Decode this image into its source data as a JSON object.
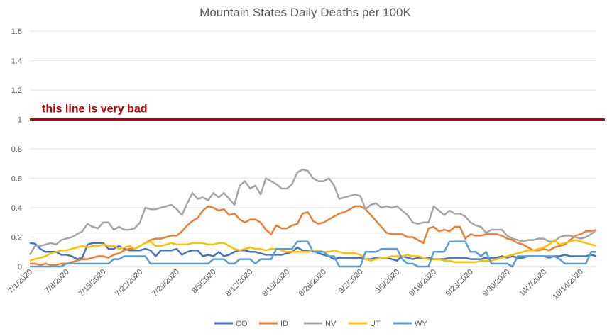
{
  "chart_data": {
    "type": "line",
    "title": "Mountain States Daily Deaths per 100K",
    "xlabel": "",
    "ylabel": "",
    "ylim": [
      0,
      1.6
    ],
    "yticks": [
      "0",
      "0.2",
      "0.4",
      "0.6",
      "0.8",
      "1",
      "1.2",
      "1.4",
      "1.6"
    ],
    "y_tick_values": [
      0,
      0.2,
      0.4,
      0.6,
      0.8,
      1,
      1.2,
      1.4,
      1.6
    ],
    "x_tick_labels": [
      "7/1/2020",
      "7/8/2020",
      "7/15/2020",
      "7/22/2020",
      "7/29/2020",
      "8/5/2020",
      "8/12/2020",
      "8/19/2020",
      "8/26/2020",
      "9/2/2020",
      "9/9/2020",
      "9/16/2020",
      "9/23/2020",
      "9/30/2020",
      "10/7/2020",
      "10/14/2020"
    ],
    "gridlines": true,
    "legend_position": "bottom",
    "reference_line": {
      "value": 1,
      "label": "this line is very bad",
      "color": "#c00000"
    },
    "x": [
      "7/1/2020",
      "7/2/2020",
      "7/3/2020",
      "7/4/2020",
      "7/5/2020",
      "7/6/2020",
      "7/7/2020",
      "7/8/2020",
      "7/9/2020",
      "7/10/2020",
      "7/11/2020",
      "7/12/2020",
      "7/13/2020",
      "7/14/2020",
      "7/15/2020",
      "7/16/2020",
      "7/17/2020",
      "7/18/2020",
      "7/19/2020",
      "7/20/2020",
      "7/21/2020",
      "7/22/2020",
      "7/23/2020",
      "7/24/2020",
      "7/25/2020",
      "7/26/2020",
      "7/27/2020",
      "7/28/2020",
      "7/29/2020",
      "7/30/2020",
      "7/31/2020",
      "8/1/2020",
      "8/2/2020",
      "8/3/2020",
      "8/4/2020",
      "8/5/2020",
      "8/6/2020",
      "8/7/2020",
      "8/8/2020",
      "8/9/2020",
      "8/10/2020",
      "8/11/2020",
      "8/12/2020",
      "8/13/2020",
      "8/14/2020",
      "8/15/2020",
      "8/16/2020",
      "8/17/2020",
      "8/18/2020",
      "8/19/2020",
      "8/20/2020",
      "8/21/2020",
      "8/22/2020",
      "8/23/2020",
      "8/24/2020",
      "8/25/2020",
      "8/26/2020",
      "8/27/2020",
      "8/28/2020",
      "8/29/2020",
      "8/30/2020",
      "8/31/2020",
      "9/1/2020",
      "9/2/2020",
      "9/3/2020",
      "9/4/2020",
      "9/5/2020",
      "9/6/2020",
      "9/7/2020",
      "9/8/2020",
      "9/9/2020",
      "9/10/2020",
      "9/11/2020",
      "9/12/2020",
      "9/13/2020",
      "9/14/2020",
      "9/15/2020",
      "9/16/2020",
      "9/17/2020",
      "9/18/2020",
      "9/19/2020",
      "9/20/2020",
      "9/21/2020",
      "9/22/2020",
      "9/23/2020",
      "9/24/2020",
      "9/25/2020",
      "9/26/2020",
      "9/27/2020",
      "9/28/2020",
      "9/29/2020",
      "9/30/2020",
      "10/1/2020",
      "10/2/2020",
      "10/3/2020",
      "10/4/2020",
      "10/5/2020",
      "10/6/2020",
      "10/7/2020",
      "10/8/2020",
      "10/9/2020",
      "10/10/2020",
      "10/11/2020",
      "10/12/2020",
      "10/13/2020",
      "10/14/2020",
      "10/15/2020",
      "10/16/2020",
      "10/17/2020"
    ],
    "series": [
      {
        "name": "CO",
        "color": "#4472c4",
        "values": [
          0.16,
          0.155,
          0.12,
          0.1,
          0.1,
          0.1,
          0.08,
          0.08,
          0.07,
          0.05,
          0.06,
          0.15,
          0.16,
          0.16,
          0.16,
          0.12,
          0.12,
          0.14,
          0.12,
          0.11,
          0.11,
          0.11,
          0.12,
          0.11,
          0.07,
          0.11,
          0.11,
          0.11,
          0.12,
          0.08,
          0.1,
          0.11,
          0.11,
          0.07,
          0.08,
          0.07,
          0.1,
          0.07,
          0.08,
          0.1,
          0.11,
          0.11,
          0.1,
          0.1,
          0.09,
          0.08,
          0.08,
          0.08,
          0.08,
          0.09,
          0.1,
          0.13,
          0.11,
          0.11,
          0.11,
          0.09,
          0.08,
          0.07,
          0.05,
          0.06,
          0.06,
          0.06,
          0.06,
          0.06,
          0.05,
          0.05,
          0.06,
          0.06,
          0.06,
          0.05,
          0.04,
          0.07,
          0.06,
          0.05,
          0.06,
          0.06,
          0.06,
          0.05,
          0.05,
          0.05,
          0.06,
          0.06,
          0.06,
          0.06,
          0.05,
          0.05,
          0.05,
          0.06,
          0.06,
          0.06,
          0.07,
          0.06,
          0.07,
          0.06,
          0.06,
          0.07,
          0.07,
          0.07,
          0.07,
          0.06,
          0.07,
          0.07,
          0.08,
          0.07,
          0.07,
          0.07,
          0.07,
          0.08,
          0.07
        ]
      },
      {
        "name": "ID",
        "color": "#ed7d31",
        "values": [
          0.02,
          0.02,
          0.01,
          0.02,
          0.01,
          0.01,
          0.02,
          0.02,
          0.03,
          0.04,
          0.05,
          0.05,
          0.06,
          0.07,
          0.07,
          0.06,
          0.08,
          0.09,
          0.11,
          0.12,
          0.12,
          0.14,
          0.16,
          0.18,
          0.19,
          0.19,
          0.2,
          0.21,
          0.21,
          0.24,
          0.28,
          0.31,
          0.33,
          0.38,
          0.41,
          0.4,
          0.38,
          0.39,
          0.35,
          0.36,
          0.32,
          0.3,
          0.32,
          0.32,
          0.3,
          0.25,
          0.22,
          0.28,
          0.26,
          0.26,
          0.28,
          0.29,
          0.36,
          0.37,
          0.31,
          0.29,
          0.3,
          0.32,
          0.34,
          0.36,
          0.37,
          0.39,
          0.41,
          0.41,
          0.39,
          0.35,
          0.31,
          0.27,
          0.23,
          0.22,
          0.22,
          0.22,
          0.2,
          0.2,
          0.18,
          0.16,
          0.26,
          0.27,
          0.24,
          0.25,
          0.24,
          0.27,
          0.27,
          0.19,
          0.22,
          0.21,
          0.21,
          0.22,
          0.22,
          0.22,
          0.21,
          0.19,
          0.18,
          0.16,
          0.15,
          0.13,
          0.11,
          0.11,
          0.12,
          0.11,
          0.13,
          0.14,
          0.15,
          0.18,
          0.21,
          0.22,
          0.24,
          0.24,
          0.25
        ]
      },
      {
        "name": "NV",
        "color": "#a5a5a5",
        "values": [
          0.08,
          0.14,
          0.14,
          0.15,
          0.16,
          0.15,
          0.18,
          0.19,
          0.2,
          0.22,
          0.24,
          0.29,
          0.27,
          0.26,
          0.3,
          0.3,
          0.25,
          0.27,
          0.25,
          0.25,
          0.26,
          0.3,
          0.4,
          0.39,
          0.39,
          0.4,
          0.41,
          0.42,
          0.39,
          0.35,
          0.43,
          0.5,
          0.46,
          0.47,
          0.45,
          0.5,
          0.47,
          0.5,
          0.46,
          0.42,
          0.55,
          0.58,
          0.53,
          0.55,
          0.49,
          0.6,
          0.58,
          0.56,
          0.53,
          0.53,
          0.56,
          0.64,
          0.66,
          0.65,
          0.6,
          0.58,
          0.58,
          0.6,
          0.55,
          0.46,
          0.47,
          0.48,
          0.49,
          0.48,
          0.39,
          0.42,
          0.43,
          0.4,
          0.41,
          0.4,
          0.41,
          0.38,
          0.35,
          0.3,
          0.29,
          0.3,
          0.3,
          0.41,
          0.38,
          0.35,
          0.38,
          0.36,
          0.36,
          0.34,
          0.3,
          0.28,
          0.27,
          0.23,
          0.25,
          0.25,
          0.25,
          0.21,
          0.19,
          0.18,
          0.17,
          0.18,
          0.18,
          0.19,
          0.19,
          0.17,
          0.17,
          0.2,
          0.21,
          0.21,
          0.2,
          0.19,
          0.2,
          0.22,
          0.25
        ]
      },
      {
        "name": "UT",
        "color": "#ffc000",
        "values": [
          0.04,
          0.05,
          0.06,
          0.07,
          0.09,
          0.1,
          0.11,
          0.11,
          0.12,
          0.13,
          0.14,
          0.13,
          0.14,
          0.14,
          0.15,
          0.14,
          0.14,
          0.12,
          0.13,
          0.14,
          0.12,
          0.14,
          0.16,
          0.17,
          0.14,
          0.14,
          0.15,
          0.16,
          0.15,
          0.15,
          0.15,
          0.16,
          0.16,
          0.16,
          0.15,
          0.15,
          0.16,
          0.16,
          0.14,
          0.12,
          0.11,
          0.12,
          0.13,
          0.12,
          0.12,
          0.11,
          0.12,
          0.12,
          0.11,
          0.1,
          0.1,
          0.1,
          0.1,
          0.1,
          0.11,
          0.11,
          0.1,
          0.1,
          0.11,
          0.1,
          0.09,
          0.09,
          0.09,
          0.08,
          0.05,
          0.04,
          0.05,
          0.06,
          0.06,
          0.07,
          0.07,
          0.07,
          0.08,
          0.07,
          0.07,
          0.06,
          0.05,
          0.05,
          0.05,
          0.04,
          0.04,
          0.03,
          0.03,
          0.03,
          0.03,
          0.03,
          0.04,
          0.04,
          0.04,
          0.05,
          0.06,
          0.07,
          0.08,
          0.09,
          0.1,
          0.11,
          0.11,
          0.12,
          0.13,
          0.15,
          0.18,
          0.15,
          0.16,
          0.17,
          0.18,
          0.17,
          0.16,
          0.15,
          0.14
        ]
      },
      {
        "name": "WY",
        "color": "#5b9bd5",
        "values": [
          0.0,
          0.0,
          0.0,
          0.0,
          0.0,
          0.0,
          0.0,
          0.02,
          0.02,
          0.02,
          0.02,
          0.02,
          0.02,
          0.02,
          0.02,
          0.02,
          0.05,
          0.05,
          0.07,
          0.07,
          0.07,
          0.07,
          0.07,
          0.02,
          0.02,
          0.02,
          0.02,
          0.02,
          0.02,
          0.02,
          0.02,
          0.02,
          0.02,
          0.02,
          0.02,
          0.05,
          0.05,
          0.05,
          0.02,
          0.02,
          0.05,
          0.05,
          0.05,
          0.02,
          0.05,
          0.05,
          0.05,
          0.12,
          0.12,
          0.12,
          0.12,
          0.17,
          0.17,
          0.17,
          0.1,
          0.1,
          0.1,
          0.07,
          0.07,
          0.0,
          0.0,
          0.0,
          0.0,
          0.0,
          0.1,
          0.1,
          0.1,
          0.12,
          0.12,
          0.12,
          0.12,
          0.05,
          0.02,
          0.02,
          0.0,
          0.0,
          0.0,
          0.1,
          0.1,
          0.1,
          0.17,
          0.17,
          0.17,
          0.17,
          0.1,
          0.1,
          0.07,
          0.1,
          0.02,
          0.02,
          0.02,
          0.02,
          0.0,
          0.07,
          0.07,
          0.07,
          0.07,
          0.07,
          0.07,
          0.07,
          0.07,
          0.05,
          0.02,
          0.02,
          0.02,
          0.02,
          0.02,
          0.1,
          0.1
        ]
      }
    ]
  }
}
